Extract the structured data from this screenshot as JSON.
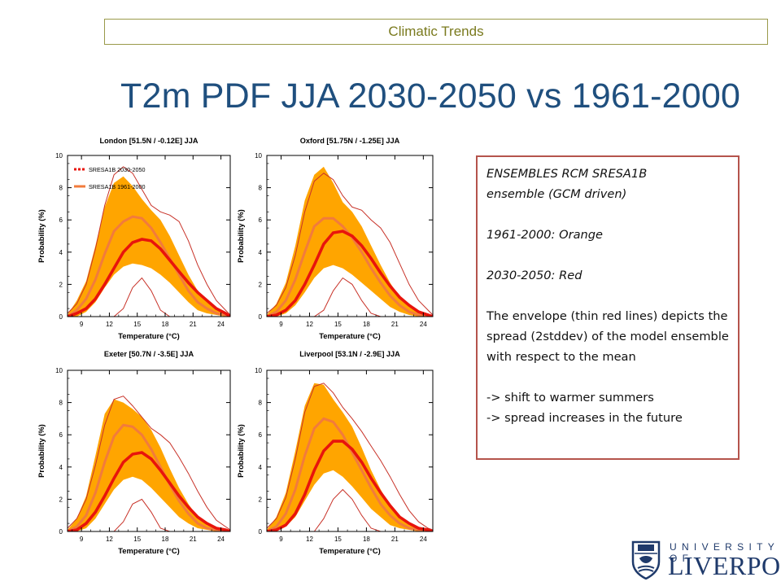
{
  "header": {
    "section_label": "Climatic Trends"
  },
  "title": "T2m PDF JJA 2030-2050 vs 1961-2000",
  "info": {
    "line1": "ENSEMBLES RCM SRESA1B",
    "line2": "ensemble (GCM driven)",
    "orange_note": "1961-2000: Orange",
    "red_note": "2030-2050: Red",
    "envelope_note": "The envelope  (thin red lines) depicts the spread (2stddev) of the model ensemble with respect to the mean",
    "shift_note": "-> shift to warmer summers",
    "spread_note": "-> spread increases in the future"
  },
  "logo": {
    "top_text": "UNIVERSITY OF",
    "main_text": "LIVERPOOL"
  },
  "colors": {
    "red": "#e8140c",
    "orange": "#ffa500",
    "orange_line": "#f27b3c",
    "thin_red": "#c83228"
  },
  "chart_data": [
    {
      "type": "line",
      "title": "London [51.5N / -0.12E] JJA",
      "xlabel": "Temperature (°C)",
      "ylabel": "Probability (%)",
      "xlim": [
        7.5,
        25
      ],
      "ylim": [
        0,
        10
      ],
      "xticks": [
        9,
        12,
        15,
        18,
        21,
        24
      ],
      "yticks": [
        0,
        2,
        4,
        6,
        8,
        10
      ],
      "legend": [
        {
          "label": "SRESA1B 2030-2050",
          "color": "#e8140c"
        },
        {
          "label": "SRESA1B 1961-2000",
          "color": "#f27b3c"
        }
      ],
      "x": [
        7.5,
        8.5,
        9.5,
        10.5,
        11.5,
        12.5,
        13.5,
        14.5,
        15.5,
        16.5,
        17.5,
        18.5,
        19.5,
        20.5,
        21.5,
        22.5,
        23.5,
        24.5,
        25
      ],
      "series": [
        {
          "name": "SRESA1B 1961-2000",
          "role": "mean",
          "values": [
            0.0,
            0.4,
            1.1,
            2.3,
            3.9,
            5.3,
            5.9,
            6.2,
            6.1,
            5.5,
            4.6,
            3.6,
            2.6,
            1.6,
            0.9,
            0.5,
            0.2,
            0.1,
            0.0
          ]
        },
        {
          "name": "",
          "role": "band_upper",
          "values": [
            0.1,
            1.0,
            2.2,
            4.4,
            6.8,
            8.3,
            8.7,
            8.1,
            7.3,
            6.6,
            6.0,
            5.0,
            3.8,
            2.6,
            1.6,
            0.9,
            0.4,
            0.2,
            0.1
          ]
        },
        {
          "name": "",
          "role": "band_lower",
          "values": [
            0.0,
            0.0,
            0.3,
            0.9,
            1.8,
            2.6,
            3.1,
            3.3,
            3.2,
            3.0,
            2.6,
            2.1,
            1.5,
            0.9,
            0.4,
            0.2,
            0.1,
            0.0,
            0.0
          ]
        },
        {
          "name": "SRESA1B 2030-2050",
          "role": "mean",
          "values": [
            0.0,
            0.2,
            0.5,
            1.1,
            2.0,
            3.0,
            4.0,
            4.6,
            4.8,
            4.7,
            4.2,
            3.5,
            2.8,
            2.1,
            1.5,
            1.0,
            0.5,
            0.2,
            0.0
          ]
        },
        {
          "name": "",
          "role": "envelope_upper",
          "values": [
            0.2,
            0.8,
            2.0,
            4.2,
            6.9,
            8.8,
            9.3,
            8.9,
            7.9,
            6.9,
            6.5,
            6.3,
            5.9,
            4.7,
            3.2,
            2.0,
            1.0,
            0.4,
            0.1
          ]
        },
        {
          "name": "",
          "role": "envelope_lower",
          "values": [
            0.0,
            0.0,
            0.0,
            0.0,
            0.0,
            0.0,
            0.5,
            1.8,
            2.4,
            1.6,
            0.4,
            0.0,
            0.0,
            0.0,
            0.0,
            0.0,
            0.0,
            0.0,
            0.0
          ]
        }
      ]
    },
    {
      "type": "line",
      "title": "Oxford [51.75N / -1.25E] JJA",
      "xlabel": "Temperature (°C)",
      "ylabel": "Probability (%)",
      "xlim": [
        7.5,
        25
      ],
      "ylim": [
        0,
        10
      ],
      "xticks": [
        9,
        12,
        15,
        18,
        21,
        24
      ],
      "yticks": [
        0,
        2,
        4,
        6,
        8,
        10
      ],
      "x": [
        7.5,
        8.5,
        9.5,
        10.5,
        11.5,
        12.5,
        13.5,
        14.5,
        15.5,
        16.5,
        17.5,
        18.5,
        19.5,
        20.5,
        21.5,
        22.5,
        23.5,
        24.5,
        25
      ],
      "series": [
        {
          "name": "",
          "role": "mean",
          "values": [
            0.0,
            0.3,
            1.0,
            2.3,
            4.0,
            5.6,
            6.1,
            6.1,
            5.6,
            4.9,
            4.0,
            3.0,
            2.1,
            1.3,
            0.7,
            0.3,
            0.1,
            0.0,
            0.0
          ]
        },
        {
          "name": "",
          "role": "band_upper",
          "values": [
            0.1,
            0.8,
            2.1,
            4.4,
            7.2,
            8.8,
            9.3,
            8.3,
            7.1,
            6.5,
            5.6,
            4.4,
            3.2,
            2.1,
            1.2,
            0.6,
            0.2,
            0.1,
            0.0
          ]
        },
        {
          "name": "",
          "role": "band_lower",
          "values": [
            0.0,
            0.0,
            0.2,
            0.7,
            1.5,
            2.4,
            3.0,
            3.2,
            3.0,
            2.6,
            2.1,
            1.6,
            1.1,
            0.6,
            0.3,
            0.1,
            0.0,
            0.0,
            0.0
          ]
        },
        {
          "name": "",
          "role": "mean",
          "values": [
            0.0,
            0.1,
            0.4,
            1.0,
            2.0,
            3.2,
            4.5,
            5.2,
            5.3,
            5.0,
            4.4,
            3.6,
            2.7,
            1.9,
            1.2,
            0.7,
            0.3,
            0.1,
            0.0
          ]
        },
        {
          "name": "",
          "role": "envelope_upper",
          "values": [
            0.2,
            0.7,
            1.8,
            3.8,
            6.5,
            8.4,
            8.9,
            8.5,
            7.5,
            6.8,
            6.6,
            6.0,
            5.5,
            4.6,
            3.3,
            2.0,
            1.0,
            0.4,
            0.1
          ]
        },
        {
          "name": "",
          "role": "envelope_lower",
          "values": [
            0.0,
            0.0,
            0.0,
            0.0,
            0.0,
            0.0,
            0.4,
            1.6,
            2.4,
            2.0,
            1.0,
            0.2,
            0.0,
            0.0,
            0.0,
            0.0,
            0.0,
            0.0,
            0.0
          ]
        }
      ]
    },
    {
      "type": "line",
      "title": "Exeter [50.7N / -3.5E] JJA",
      "xlabel": "Temperature (°C)",
      "ylabel": "Probability (%)",
      "xlim": [
        7.5,
        25
      ],
      "ylim": [
        0,
        10
      ],
      "xticks": [
        9,
        12,
        15,
        18,
        21,
        24
      ],
      "yticks": [
        0,
        2,
        4,
        6,
        8,
        10
      ],
      "x": [
        7.5,
        8.5,
        9.5,
        10.5,
        11.5,
        12.5,
        13.5,
        14.5,
        15.5,
        16.5,
        17.5,
        18.5,
        19.5,
        20.5,
        21.5,
        22.5,
        23.5,
        24.5,
        25
      ],
      "series": [
        {
          "name": "",
          "role": "mean",
          "values": [
            0.0,
            0.3,
            1.0,
            2.4,
            4.3,
            5.9,
            6.6,
            6.5,
            6.0,
            5.1,
            4.0,
            2.9,
            1.9,
            1.1,
            0.5,
            0.2,
            0.1,
            0.0,
            0.0
          ]
        },
        {
          "name": "",
          "role": "band_upper",
          "values": [
            0.1,
            0.8,
            2.2,
            4.7,
            7.3,
            8.2,
            8.0,
            7.6,
            7.1,
            6.3,
            5.2,
            3.9,
            2.7,
            1.7,
            0.9,
            0.4,
            0.2,
            0.1,
            0.0
          ]
        },
        {
          "name": "",
          "role": "band_lower",
          "values": [
            0.0,
            0.0,
            0.2,
            0.8,
            1.7,
            2.6,
            3.2,
            3.4,
            3.2,
            2.7,
            2.1,
            1.5,
            0.9,
            0.5,
            0.2,
            0.1,
            0.0,
            0.0,
            0.0
          ]
        },
        {
          "name": "",
          "role": "mean",
          "values": [
            0.0,
            0.1,
            0.5,
            1.2,
            2.2,
            3.3,
            4.3,
            4.8,
            4.9,
            4.5,
            3.8,
            3.0,
            2.2,
            1.5,
            0.9,
            0.5,
            0.2,
            0.1,
            0.0
          ]
        },
        {
          "name": "",
          "role": "envelope_upper",
          "values": [
            0.2,
            0.8,
            2.0,
            4.1,
            6.6,
            8.2,
            8.4,
            7.8,
            7.1,
            6.4,
            6.0,
            5.5,
            4.6,
            3.6,
            2.5,
            1.5,
            0.7,
            0.3,
            0.1
          ]
        },
        {
          "name": "",
          "role": "envelope_lower",
          "values": [
            0.0,
            0.0,
            0.0,
            0.0,
            0.0,
            0.0,
            0.6,
            1.7,
            2.0,
            1.2,
            0.2,
            0.0,
            0.0,
            0.0,
            0.0,
            0.0,
            0.0,
            0.0,
            0.0
          ]
        }
      ]
    },
    {
      "type": "line",
      "title": "Liverpool [53.1N / -2.9E] JJA",
      "xlabel": "Temperature (°C)",
      "ylabel": "Probability (%)",
      "xlim": [
        7.5,
        25
      ],
      "ylim": [
        0,
        10
      ],
      "xticks": [
        9,
        12,
        15,
        18,
        21,
        24
      ],
      "yticks": [
        0,
        2,
        4,
        6,
        8,
        10
      ],
      "x": [
        7.5,
        8.5,
        9.5,
        10.5,
        11.5,
        12.5,
        13.5,
        14.5,
        15.5,
        16.5,
        17.5,
        18.5,
        19.5,
        20.5,
        21.5,
        22.5,
        23.5,
        24.5,
        25
      ],
      "series": [
        {
          "name": "",
          "role": "mean",
          "values": [
            0.0,
            0.3,
            1.1,
            2.6,
            4.7,
            6.4,
            7.0,
            6.8,
            6.0,
            4.9,
            3.8,
            2.7,
            1.7,
            1.0,
            0.5,
            0.2,
            0.1,
            0.0,
            0.0
          ]
        },
        {
          "name": "",
          "role": "band_upper",
          "values": [
            0.1,
            0.9,
            2.4,
            5.0,
            7.8,
            9.2,
            9.1,
            8.2,
            7.4,
            6.5,
            5.2,
            3.8,
            2.6,
            1.6,
            0.8,
            0.4,
            0.2,
            0.1,
            0.0
          ]
        },
        {
          "name": "",
          "role": "band_lower",
          "values": [
            0.0,
            0.0,
            0.3,
            0.9,
            1.9,
            2.9,
            3.6,
            3.8,
            3.4,
            2.8,
            2.1,
            1.4,
            0.9,
            0.4,
            0.2,
            0.1,
            0.0,
            0.0,
            0.0
          ]
        },
        {
          "name": "",
          "role": "mean",
          "values": [
            0.0,
            0.1,
            0.4,
            1.1,
            2.3,
            3.8,
            5.0,
            5.6,
            5.6,
            5.1,
            4.3,
            3.3,
            2.4,
            1.6,
            0.9,
            0.5,
            0.2,
            0.1,
            0.0
          ]
        },
        {
          "name": "",
          "role": "envelope_upper",
          "values": [
            0.2,
            0.8,
            2.1,
            4.5,
            7.4,
            9.0,
            9.2,
            8.6,
            7.7,
            7.0,
            6.2,
            5.3,
            4.4,
            3.4,
            2.3,
            1.3,
            0.6,
            0.2,
            0.1
          ]
        },
        {
          "name": "",
          "role": "envelope_lower",
          "values": [
            0.0,
            0.0,
            0.0,
            0.0,
            0.0,
            0.0,
            0.8,
            2.0,
            2.6,
            2.0,
            1.0,
            0.2,
            0.0,
            0.0,
            0.0,
            0.0,
            0.0,
            0.0,
            0.0
          ]
        }
      ]
    }
  ]
}
